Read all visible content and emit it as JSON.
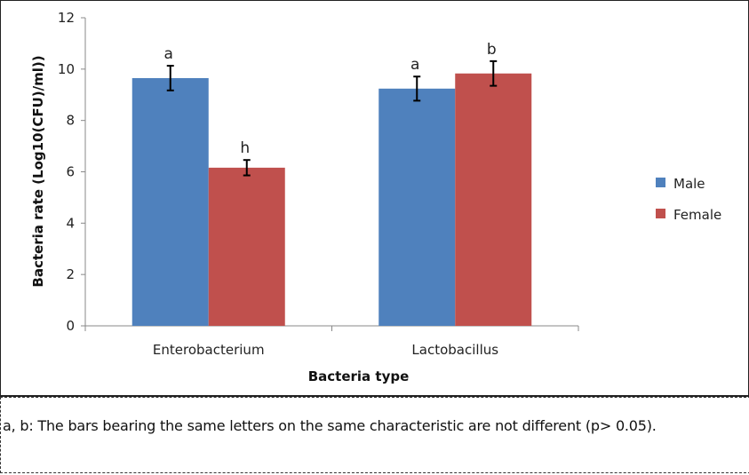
{
  "chart_data": {
    "type": "bar",
    "title": "",
    "xlabel": "Bacteria type",
    "ylabel": "Bacteria rate (Log10(CFU)/ml))",
    "ylim": [
      0,
      12
    ],
    "yticks": [
      0,
      2,
      4,
      6,
      8,
      10,
      12
    ],
    "categories": [
      "Enterobacterium",
      "Lactobacillus"
    ],
    "series": [
      {
        "name": "Male",
        "color": "#4F81BD",
        "values": [
          9.65,
          9.24
        ],
        "errors": [
          0.48,
          0.47
        ],
        "labels": [
          "a",
          "a"
        ]
      },
      {
        "name": "Female",
        "color": "#C0504D",
        "values": [
          6.16,
          9.83
        ],
        "errors": [
          0.3,
          0.48
        ],
        "labels": [
          "h",
          "b"
        ]
      }
    ],
    "grid": false,
    "legend": "right"
  },
  "caption": "a, b: The bars bearing the same letters on the same characteristic are not different (p> 0.05)."
}
